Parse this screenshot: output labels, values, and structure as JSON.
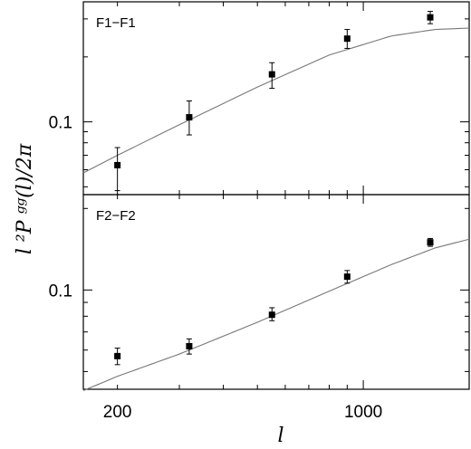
{
  "chart_data": [
    {
      "type": "scatter",
      "panel_label": "F1−F1",
      "xscale": "log",
      "yscale": "log",
      "xlim": [
        160,
        2000
      ],
      "ylim": [
        0.046,
        0.36
      ],
      "yticks": [
        {
          "value": 0.1,
          "label": "0.1"
        }
      ],
      "points": [
        {
          "x": 200,
          "y": 0.063,
          "yerr_low": 0.048,
          "yerr_high": 0.076
        },
        {
          "x": 320,
          "y": 0.105,
          "yerr_low": 0.087,
          "yerr_high": 0.125
        },
        {
          "x": 550,
          "y": 0.166,
          "yerr_low": 0.143,
          "yerr_high": 0.188
        },
        {
          "x": 900,
          "y": 0.243,
          "yerr_low": 0.219,
          "yerr_high": 0.268
        },
        {
          "x": 1550,
          "y": 0.305,
          "yerr_low": 0.285,
          "yerr_high": 0.325
        }
      ],
      "model_curve": {
        "x": [
          160,
          200,
          300,
          500,
          800,
          1200,
          1600,
          2000
        ],
        "y": [
          0.058,
          0.07,
          0.097,
          0.145,
          0.204,
          0.25,
          0.268,
          0.272
        ]
      }
    },
    {
      "type": "scatter",
      "panel_label": "F2−F2",
      "xscale": "log",
      "yscale": "log",
      "xlim": [
        160,
        2000
      ],
      "ylim": [
        0.043,
        0.225
      ],
      "yticks": [
        {
          "value": 0.1,
          "label": "0.1"
        }
      ],
      "points": [
        {
          "x": 200,
          "y": 0.057,
          "yerr_low": 0.053,
          "yerr_high": 0.061
        },
        {
          "x": 320,
          "y": 0.062,
          "yerr_low": 0.058,
          "yerr_high": 0.066
        },
        {
          "x": 550,
          "y": 0.081,
          "yerr_low": 0.077,
          "yerr_high": 0.086
        },
        {
          "x": 900,
          "y": 0.112,
          "yerr_low": 0.106,
          "yerr_high": 0.118
        },
        {
          "x": 1550,
          "y": 0.15,
          "yerr_low": 0.145,
          "yerr_high": 0.155
        }
      ],
      "model_curve": {
        "x": [
          160,
          200,
          300,
          500,
          800,
          1200,
          1600,
          2000
        ],
        "y": [
          0.0425,
          0.048,
          0.058,
          0.076,
          0.099,
          0.124,
          0.143,
          0.154
        ]
      }
    }
  ],
  "x_axis": {
    "label": "l",
    "ticks": [
      {
        "value": 200,
        "label": "200"
      },
      {
        "value": 1000,
        "label": "1000"
      }
    ]
  },
  "y_axis": {
    "label": "l ²P ᵍᵍ(l)/2π"
  }
}
